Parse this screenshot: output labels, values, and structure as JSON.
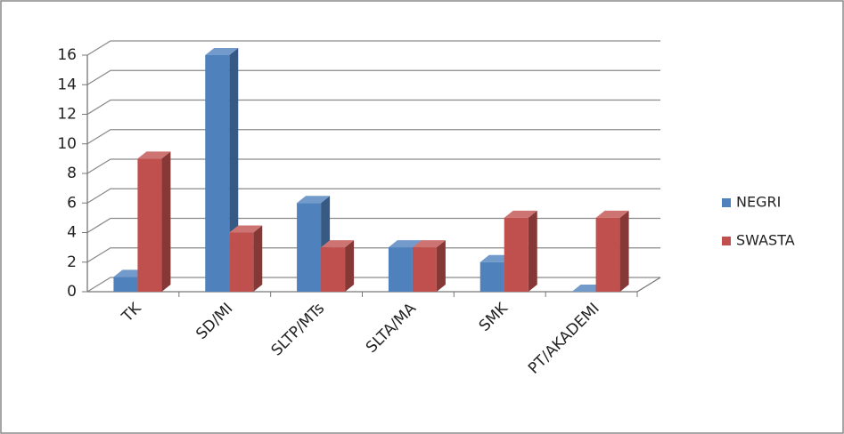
{
  "chart_data": {
    "type": "bar3d",
    "categories": [
      "TK",
      "SD/MI",
      "SLTP/MTs",
      "SLTA/MA",
      "SMK",
      "PT/AKADEMI"
    ],
    "series": [
      {
        "name": "NEGRI",
        "color": "#4F81BD",
        "values": [
          1,
          16,
          6,
          3,
          2,
          0
        ]
      },
      {
        "name": "SWASTA",
        "color": "#C0504D",
        "values": [
          9,
          4,
          3,
          3,
          5,
          5
        ]
      }
    ],
    "ylim": [
      0,
      16
    ],
    "yticks": [
      0,
      2,
      4,
      6,
      8,
      10,
      12,
      14,
      16
    ],
    "grid": true,
    "legend": "right"
  }
}
